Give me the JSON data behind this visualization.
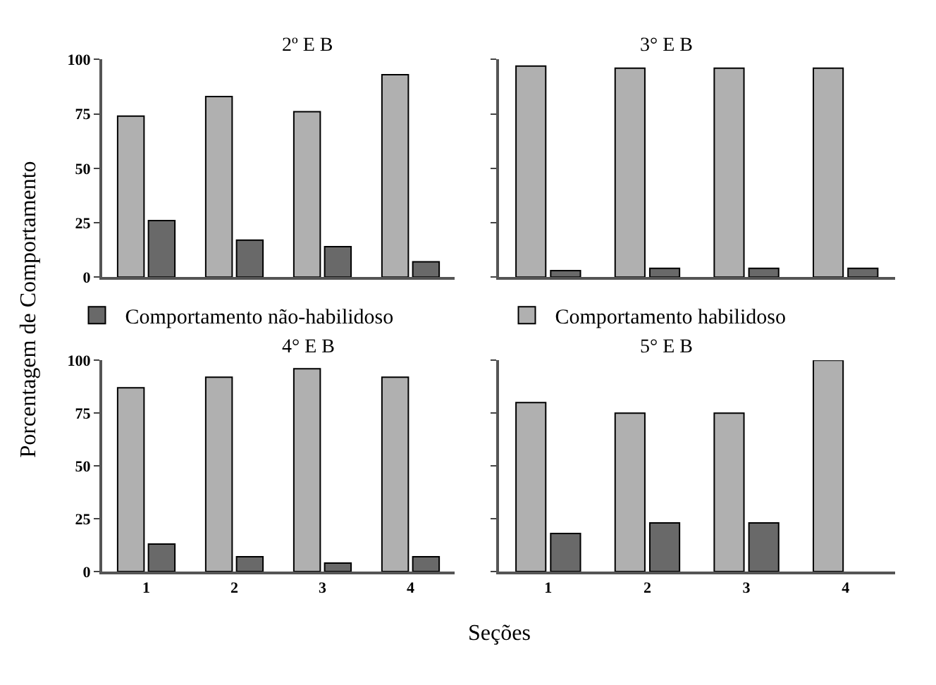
{
  "chart_data": [
    {
      "type": "bar",
      "title": "2º E B",
      "ylabel": "Porcentagem de Comportamento",
      "categories": [
        "1",
        "2",
        "3",
        "4"
      ],
      "ylim": [
        0,
        100
      ],
      "yticks": [
        0,
        25,
        50,
        75,
        100
      ],
      "tick_labels": "y",
      "legend": "bottom",
      "series": [
        {
          "name": "Comportamento habilidoso",
          "color": "#b0b0b0",
          "values": [
            74,
            83,
            76,
            93
          ]
        },
        {
          "name": "Comportamento não-habilidoso",
          "color": "#696969",
          "values": [
            26,
            17,
            14,
            7
          ]
        }
      ]
    },
    {
      "type": "bar",
      "title": "3° E B",
      "categories": [
        "1",
        "2",
        "3",
        "4"
      ],
      "ylim": [
        0,
        100
      ],
      "yticks": [
        0,
        25,
        50,
        75,
        100
      ],
      "tick_labels": false,
      "series": [
        {
          "color": "#b0b0b0",
          "values": [
            97,
            96,
            96,
            96
          ]
        },
        {
          "color": "#696969",
          "values": [
            3,
            4,
            4,
            4
          ]
        }
      ]
    },
    {
      "type": "bar",
      "title": "4° E B",
      "xlabel": "Seções",
      "categories": [
        "1",
        "2",
        "3",
        "4"
      ],
      "ylim": [
        0,
        100
      ],
      "yticks": [
        0,
        25,
        50,
        75,
        100
      ],
      "series": [
        {
          "color": "#b0b0b0",
          "values": [
            87,
            92,
            96,
            92
          ]
        },
        {
          "color": "#696969",
          "values": [
            13,
            7,
            4,
            7
          ]
        }
      ]
    },
    {
      "type": "bar",
      "title": "5° E B",
      "categories": [
        "1",
        "2",
        "3",
        "4"
      ],
      "ylim": [
        0,
        100
      ],
      "yticks": [
        0,
        25,
        50,
        75,
        100
      ],
      "tick_labels": "x",
      "series": [
        {
          "color": "#b0b0b0",
          "values": [
            80,
            75,
            75,
            100
          ]
        },
        {
          "color": "#696969",
          "values": [
            18,
            23,
            23,
            null
          ]
        }
      ]
    }
  ]
}
